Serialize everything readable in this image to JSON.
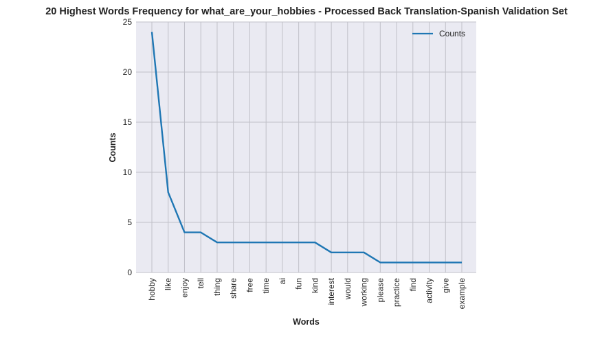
{
  "chart_data": {
    "type": "line",
    "title": "20 Highest Words Frequency for what_are_your_hobbies - Processed Back Translation-Spanish Validation Set",
    "xlabel": "Words",
    "ylabel": "Counts",
    "categories": [
      "hobby",
      "like",
      "enjoy",
      "tell",
      "thing",
      "share",
      "free",
      "time",
      "ai",
      "fun",
      "kind",
      "interest",
      "would",
      "working",
      "please",
      "practice",
      "find",
      "activity",
      "give",
      "example"
    ],
    "series": [
      {
        "name": "Counts",
        "values": [
          24,
          8,
          4,
          4,
          3,
          3,
          3,
          3,
          3,
          3,
          3,
          2,
          2,
          2,
          1,
          1,
          1,
          1,
          1,
          1
        ]
      }
    ],
    "ylim": [
      0,
      25
    ],
    "yticks": [
      0,
      5,
      10,
      15,
      20,
      25
    ],
    "grid": true,
    "legend_position": "top-right",
    "colors": {
      "line": "#1f77b4",
      "plot_background": "#eaeaf2",
      "grid": "#c0c0c8"
    }
  }
}
